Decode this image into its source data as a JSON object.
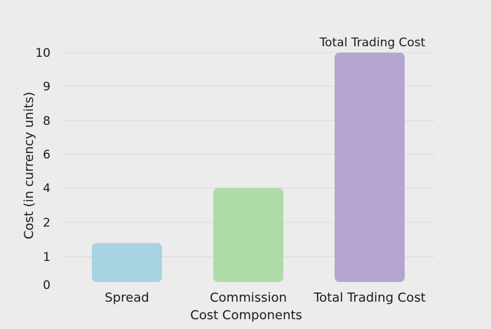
{
  "chart_data": {
    "type": "bar",
    "title": "",
    "xlabel": "Cost Components",
    "ylabel": "Cost (in currency units)",
    "categories": [
      "Spread",
      "Commission",
      "Total Trading Cost"
    ],
    "values": [
      1.4,
      4,
      10
    ],
    "colors": [
      "#a8d3e0",
      "#aedba8",
      "#b5a6cf"
    ],
    "y_tick_labels": [
      "0",
      "1",
      "2",
      "4",
      "6",
      "8",
      "9",
      "10"
    ],
    "y_tick_positions": [
      0,
      1,
      2,
      4,
      6,
      8,
      9,
      10
    ],
    "ylim": [
      0,
      10
    ],
    "grid": true,
    "annotation": "Total Trading Cost"
  }
}
